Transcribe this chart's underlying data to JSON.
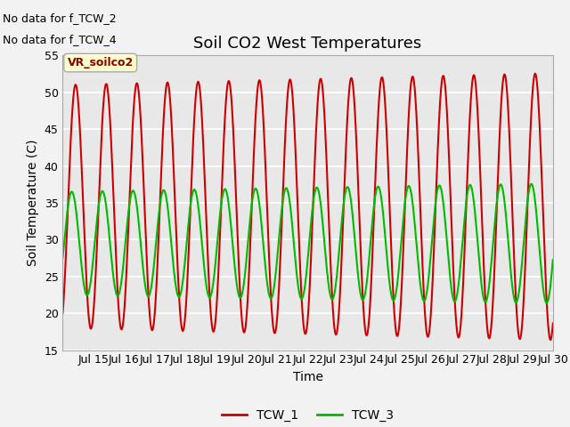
{
  "title": "Soil CO2 West Temperatures",
  "ylabel": "Soil Temperature (C)",
  "xlabel": "Time",
  "ylim": [
    15,
    55
  ],
  "xlim_days": [
    14.0,
    30.0
  ],
  "yticks": [
    15,
    20,
    25,
    30,
    35,
    40,
    45,
    50,
    55
  ],
  "xtick_labels": [
    "Jul 15",
    "Jul 16",
    "Jul 17",
    "Jul 18",
    "Jul 19",
    "Jul 20",
    "Jul 21",
    "Jul 22",
    "Jul 23",
    "Jul 24",
    "Jul 25",
    "Jul 26",
    "Jul 27",
    "Jul 28",
    "Jul 29",
    "Jul 30"
  ],
  "xtick_positions": [
    15,
    16,
    17,
    18,
    19,
    20,
    21,
    22,
    23,
    24,
    25,
    26,
    27,
    28,
    29,
    30
  ],
  "tcw1_color": "#cc0000",
  "tcw3_color": "#00bb00",
  "background_color": "#e8e8e8",
  "grid_color": "white",
  "no_data_text": [
    "No data for f_TCW_2",
    "No data for f_TCW_4"
  ],
  "vr_label": "VR_soilco2",
  "legend_labels": [
    "TCW_1",
    "TCW_3"
  ],
  "title_fontsize": 13,
  "axis_fontsize": 10,
  "tick_fontsize": 9,
  "linewidth": 1.5
}
